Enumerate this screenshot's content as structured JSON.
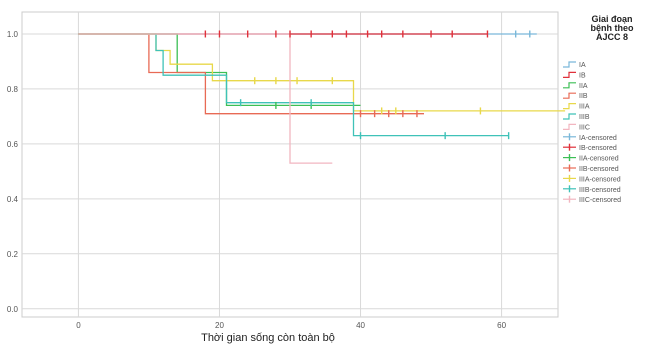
{
  "chart_data": {
    "type": "line",
    "xlabel": "Thời gian sống còn toàn bộ",
    "ylabel": "",
    "xlim": [
      -8,
      68
    ],
    "ylim": [
      -0.03,
      1.08
    ],
    "xticks": [
      0,
      20,
      40,
      60
    ],
    "yticks": [
      0.0,
      0.2,
      0.4,
      0.6,
      0.8,
      1.0
    ],
    "ytick_labels": [
      "0.0",
      "0.2",
      "0.4",
      "0.6",
      "0.8",
      "1.0"
    ],
    "grid": true,
    "legend": {
      "title_lines": [
        "Giai đoạn",
        "bệnh theo",
        "AJCC 8"
      ],
      "placement": "right"
    },
    "series": [
      {
        "name": "IA",
        "color": "#7ab8d9",
        "x": [
          0,
          65
        ],
        "y": [
          1.0,
          1.0
        ],
        "censored_x": [
          62,
          64
        ]
      },
      {
        "name": "IB",
        "color": "#e0303a",
        "x": [
          0,
          58
        ],
        "y": [
          1.0,
          1.0
        ],
        "censored_x": [
          18,
          20,
          24,
          28,
          30,
          33,
          36,
          38,
          41,
          43,
          46,
          50,
          53,
          58
        ]
      },
      {
        "name": "IIA",
        "color": "#3cbf55",
        "x": [
          0,
          14,
          14,
          21,
          21,
          40
        ],
        "y": [
          1.0,
          1.0,
          0.86,
          0.86,
          0.74,
          0.74
        ],
        "censored_x": [
          28,
          33
        ]
      },
      {
        "name": "IIB",
        "color": "#e86a55",
        "x": [
          0,
          10,
          10,
          13,
          13,
          18,
          18,
          49
        ],
        "y": [
          1.0,
          1.0,
          0.86,
          0.86,
          0.86,
          0.86,
          0.71,
          0.71
        ],
        "censored_x": [
          40,
          42,
          44,
          46,
          48
        ]
      },
      {
        "name": "IIIA",
        "color": "#e8d84a",
        "x": [
          0,
          11,
          11,
          13,
          13,
          19,
          19,
          39,
          39,
          69
        ],
        "y": [
          1.0,
          1.0,
          0.94,
          0.94,
          0.89,
          0.89,
          0.83,
          0.83,
          0.72,
          0.72
        ],
        "censored_x": [
          25,
          28,
          31,
          36,
          43,
          45,
          57
        ]
      },
      {
        "name": "IIIB",
        "color": "#3fc2b8",
        "x": [
          0,
          11,
          11,
          12,
          12,
          21,
          21,
          39,
          39,
          61
        ],
        "y": [
          1.0,
          1.0,
          0.94,
          0.94,
          0.85,
          0.85,
          0.75,
          0.75,
          0.63,
          0.63
        ],
        "censored_x": [
          23,
          33,
          40,
          52,
          61
        ]
      },
      {
        "name": "IIIC",
        "color": "#f2b6c0",
        "x": [
          0,
          30,
          30,
          36
        ],
        "y": [
          1.0,
          1.0,
          0.53,
          0.53
        ],
        "censored_x": []
      }
    ],
    "legend_entries": [
      {
        "label": "IA",
        "color": "#7ab8d9",
        "kind": "line"
      },
      {
        "label": "IB",
        "color": "#e0303a",
        "kind": "line"
      },
      {
        "label": "IIA",
        "color": "#3cbf55",
        "kind": "line"
      },
      {
        "label": "IIB",
        "color": "#e86a55",
        "kind": "line"
      },
      {
        "label": "IIIA",
        "color": "#e8d84a",
        "kind": "line"
      },
      {
        "label": "IIIB",
        "color": "#3fc2b8",
        "kind": "line"
      },
      {
        "label": "IIIC",
        "color": "#f2b6c0",
        "kind": "line"
      },
      {
        "label": "IA-censored",
        "color": "#7ab8d9",
        "kind": "mark"
      },
      {
        "label": "IB-censored",
        "color": "#e0303a",
        "kind": "mark"
      },
      {
        "label": "IIA-censored",
        "color": "#3cbf55",
        "kind": "mark"
      },
      {
        "label": "IIB-censored",
        "color": "#e86a55",
        "kind": "mark"
      },
      {
        "label": "IIIA-censored",
        "color": "#e8d84a",
        "kind": "mark"
      },
      {
        "label": "IIIB-censored",
        "color": "#3fc2b8",
        "kind": "mark"
      },
      {
        "label": "IIIC-censored",
        "color": "#f2b6c0",
        "kind": "mark"
      }
    ]
  }
}
